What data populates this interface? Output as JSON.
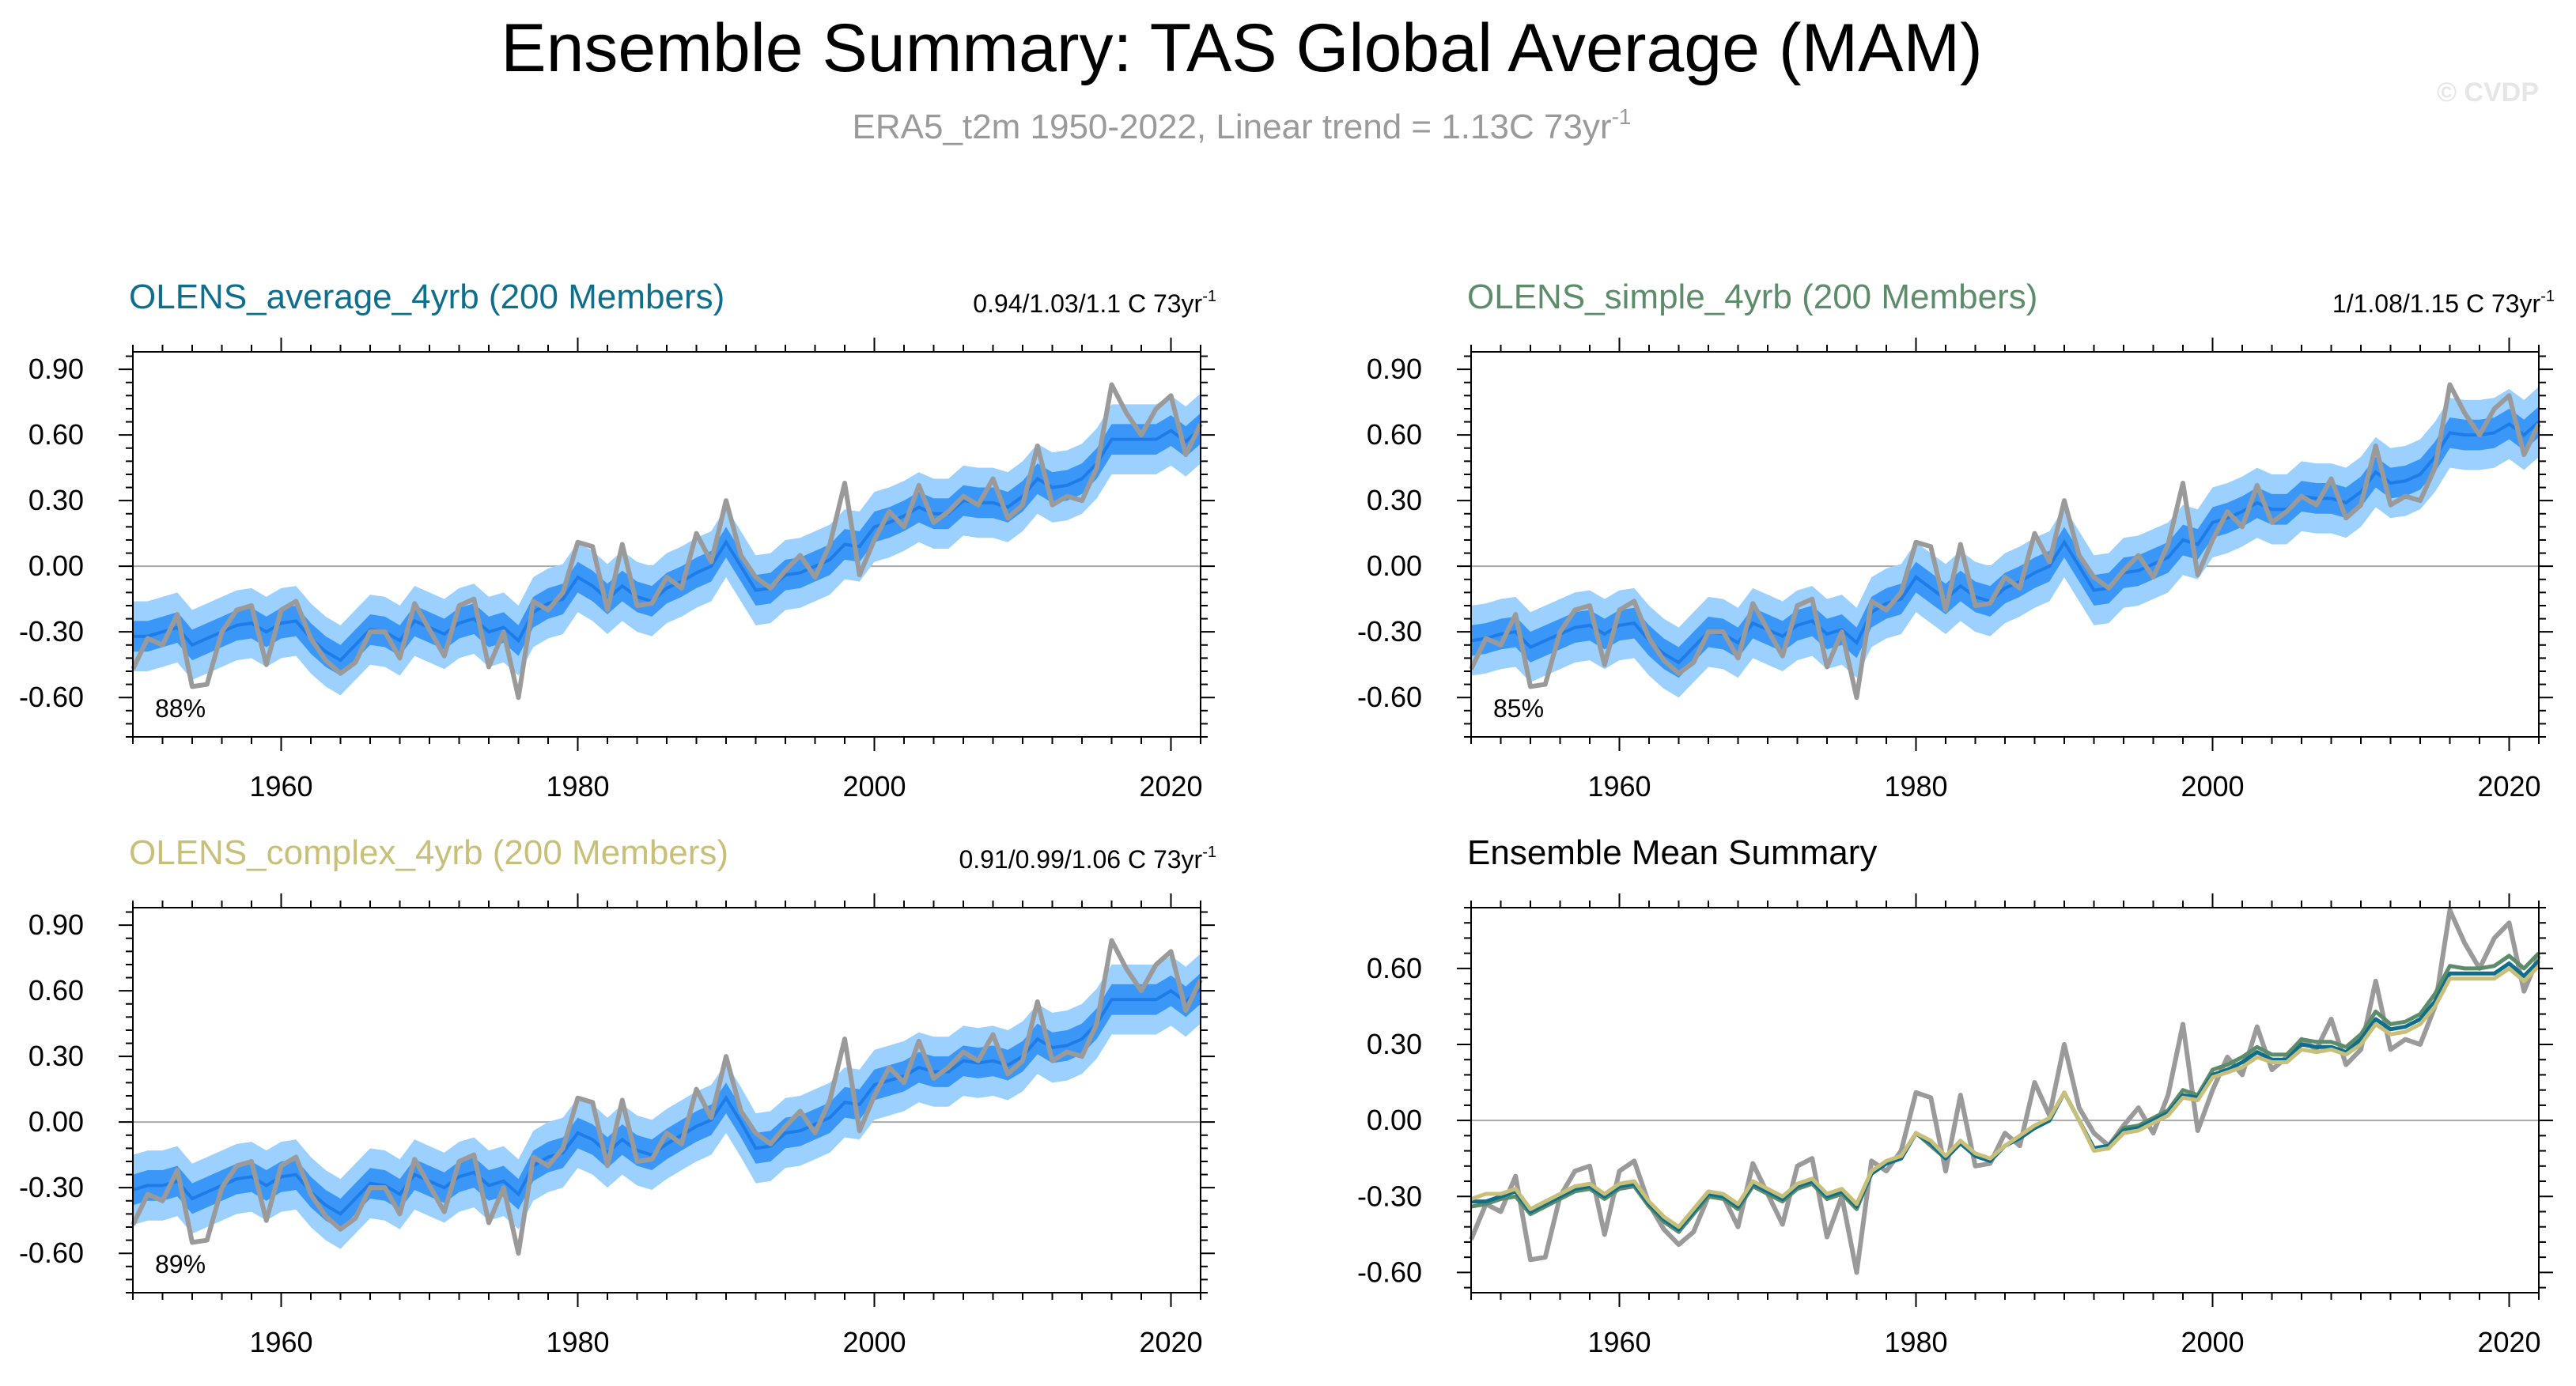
{
  "header": {
    "title": "Ensemble Summary: TAS Global Average (MAM)",
    "subtitle_main": "ERA5_t2m 1950-2022, Linear trend = 1.13C 73yr",
    "subtitle_sup": "-1",
    "watermark": "© CVDP"
  },
  "colors": {
    "obs": "#9a9a9a",
    "band_outer": "#9bd0ff",
    "band_inner": "#3b97f7",
    "mean_line": "#1e7ce8",
    "title_average": "#0f6e8c",
    "title_simple": "#5c8c6a",
    "title_complex": "#c8c07a",
    "zero_line": "#aaaaaa"
  },
  "chart_data": [
    {
      "type": "line",
      "title": "OLENS_average_4yrb (200 Members)",
      "trend_label": "0.94/1.03/1.1 C 73yr",
      "trend_sup": "-1",
      "percent_label": "88%",
      "xlim": [
        1950,
        2022
      ],
      "ylim": [
        -0.78,
        0.98
      ],
      "xticks": [
        "1960",
        "1980",
        "2000",
        "2020"
      ],
      "yticks": [
        "0.90",
        "0.60",
        "0.30",
        "0.00",
        "-0.30",
        "-0.60"
      ],
      "x_start": 1950,
      "observed": [
        -0.47,
        -0.33,
        -0.36,
        -0.22,
        -0.55,
        -0.54,
        -0.3,
        -0.2,
        -0.18,
        -0.45,
        -0.2,
        -0.16,
        -0.33,
        -0.43,
        -0.49,
        -0.44,
        -0.3,
        -0.3,
        -0.42,
        -0.17,
        -0.29,
        -0.41,
        -0.18,
        -0.15,
        -0.46,
        -0.3,
        -0.6,
        -0.16,
        -0.2,
        -0.12,
        0.11,
        0.09,
        -0.2,
        0.1,
        -0.18,
        -0.17,
        -0.05,
        -0.1,
        0.15,
        0.02,
        0.3,
        0.05,
        -0.05,
        -0.1,
        -0.02,
        0.05,
        -0.05,
        0.1,
        0.38,
        -0.04,
        0.12,
        0.25,
        0.18,
        0.37,
        0.2,
        0.25,
        0.32,
        0.28,
        0.4,
        0.22,
        0.28,
        0.55,
        0.28,
        0.32,
        0.3,
        0.45,
        0.83,
        0.7,
        0.6,
        0.72,
        0.78,
        0.51,
        0.65
      ],
      "ensemble_mean": [
        -0.32,
        -0.32,
        -0.3,
        -0.28,
        -0.36,
        -0.33,
        -0.3,
        -0.27,
        -0.26,
        -0.3,
        -0.26,
        -0.25,
        -0.33,
        -0.39,
        -0.43,
        -0.36,
        -0.29,
        -0.3,
        -0.34,
        -0.25,
        -0.28,
        -0.31,
        -0.26,
        -0.24,
        -0.3,
        -0.28,
        -0.34,
        -0.21,
        -0.17,
        -0.15,
        -0.05,
        -0.09,
        -0.15,
        -0.09,
        -0.14,
        -0.16,
        -0.1,
        -0.07,
        -0.03,
        0.0,
        0.11,
        0.0,
        -0.11,
        -0.1,
        -0.04,
        -0.03,
        0.0,
        0.03,
        0.1,
        0.09,
        0.18,
        0.2,
        0.23,
        0.27,
        0.24,
        0.24,
        0.3,
        0.29,
        0.29,
        0.27,
        0.32,
        0.4,
        0.36,
        0.37,
        0.4,
        0.47,
        0.58,
        0.58,
        0.58,
        0.58,
        0.62,
        0.57,
        0.63
      ],
      "spread_inner": 0.07,
      "spread_outer": 0.16
    },
    {
      "type": "line",
      "title": "OLENS_simple_4yrb (200 Members)",
      "trend_label": "1/1.08/1.15 C 73yr",
      "trend_sup": "-1",
      "percent_label": "85%",
      "xlim": [
        1950,
        2022
      ],
      "ylim": [
        -0.78,
        0.98
      ],
      "xticks": [
        "1960",
        "1980",
        "2000",
        "2020"
      ],
      "yticks": [
        "0.90",
        "0.60",
        "0.30",
        "0.00",
        "-0.30",
        "-0.60"
      ],
      "x_start": 1950,
      "observed": [
        -0.47,
        -0.33,
        -0.36,
        -0.22,
        -0.55,
        -0.54,
        -0.3,
        -0.2,
        -0.18,
        -0.45,
        -0.2,
        -0.16,
        -0.33,
        -0.43,
        -0.49,
        -0.44,
        -0.3,
        -0.3,
        -0.42,
        -0.17,
        -0.29,
        -0.41,
        -0.18,
        -0.15,
        -0.46,
        -0.3,
        -0.6,
        -0.16,
        -0.2,
        -0.12,
        0.11,
        0.09,
        -0.2,
        0.1,
        -0.18,
        -0.17,
        -0.05,
        -0.1,
        0.15,
        0.02,
        0.3,
        0.05,
        -0.05,
        -0.1,
        -0.02,
        0.05,
        -0.05,
        0.1,
        0.38,
        -0.04,
        0.12,
        0.25,
        0.18,
        0.37,
        0.2,
        0.25,
        0.32,
        0.28,
        0.4,
        0.22,
        0.28,
        0.55,
        0.28,
        0.32,
        0.3,
        0.45,
        0.83,
        0.7,
        0.6,
        0.72,
        0.78,
        0.51,
        0.65
      ],
      "ensemble_mean": [
        -0.34,
        -0.33,
        -0.31,
        -0.3,
        -0.37,
        -0.34,
        -0.31,
        -0.28,
        -0.27,
        -0.31,
        -0.27,
        -0.26,
        -0.34,
        -0.4,
        -0.44,
        -0.37,
        -0.3,
        -0.31,
        -0.35,
        -0.26,
        -0.29,
        -0.32,
        -0.27,
        -0.25,
        -0.31,
        -0.29,
        -0.35,
        -0.21,
        -0.17,
        -0.15,
        -0.05,
        -0.1,
        -0.15,
        -0.09,
        -0.14,
        -0.16,
        -0.1,
        -0.07,
        -0.03,
        0.0,
        0.11,
        0.0,
        -0.11,
        -0.1,
        -0.03,
        -0.02,
        0.01,
        0.04,
        0.12,
        0.1,
        0.2,
        0.22,
        0.25,
        0.29,
        0.26,
        0.26,
        0.32,
        0.31,
        0.31,
        0.29,
        0.34,
        0.43,
        0.38,
        0.39,
        0.42,
        0.5,
        0.61,
        0.6,
        0.6,
        0.61,
        0.65,
        0.6,
        0.66
      ],
      "spread_inner": 0.07,
      "spread_outer": 0.16
    },
    {
      "type": "line",
      "title": "OLENS_complex_4yrb (200 Members)",
      "trend_label": "0.91/0.99/1.06 C 73yr",
      "trend_sup": "-1",
      "percent_label": "89%",
      "xlim": [
        1950,
        2022
      ],
      "ylim": [
        -0.78,
        0.98
      ],
      "xticks": [
        "1960",
        "1980",
        "2000",
        "2020"
      ],
      "yticks": [
        "0.90",
        "0.60",
        "0.30",
        "0.00",
        "-0.30",
        "-0.60"
      ],
      "x_start": 1950,
      "observed": [
        -0.47,
        -0.33,
        -0.36,
        -0.22,
        -0.55,
        -0.54,
        -0.3,
        -0.2,
        -0.18,
        -0.45,
        -0.2,
        -0.16,
        -0.33,
        -0.43,
        -0.49,
        -0.44,
        -0.3,
        -0.3,
        -0.42,
        -0.17,
        -0.29,
        -0.41,
        -0.18,
        -0.15,
        -0.46,
        -0.3,
        -0.6,
        -0.16,
        -0.2,
        -0.12,
        0.11,
        0.09,
        -0.2,
        0.1,
        -0.18,
        -0.17,
        -0.05,
        -0.1,
        0.15,
        0.02,
        0.3,
        0.05,
        -0.05,
        -0.1,
        -0.02,
        0.05,
        -0.05,
        0.1,
        0.38,
        -0.04,
        0.12,
        0.25,
        0.18,
        0.37,
        0.2,
        0.25,
        0.32,
        0.28,
        0.4,
        0.22,
        0.28,
        0.55,
        0.28,
        0.32,
        0.3,
        0.45,
        0.83,
        0.7,
        0.6,
        0.72,
        0.78,
        0.51,
        0.65
      ],
      "ensemble_mean": [
        -0.31,
        -0.29,
        -0.29,
        -0.27,
        -0.35,
        -0.32,
        -0.29,
        -0.26,
        -0.25,
        -0.29,
        -0.25,
        -0.24,
        -0.32,
        -0.38,
        -0.42,
        -0.35,
        -0.28,
        -0.29,
        -0.33,
        -0.24,
        -0.27,
        -0.3,
        -0.25,
        -0.23,
        -0.29,
        -0.27,
        -0.33,
        -0.2,
        -0.16,
        -0.14,
        -0.05,
        -0.08,
        -0.14,
        -0.08,
        -0.13,
        -0.15,
        -0.1,
        -0.06,
        -0.02,
        0.01,
        0.11,
        0.0,
        -0.12,
        -0.11,
        -0.05,
        -0.04,
        -0.01,
        0.02,
        0.09,
        0.08,
        0.17,
        0.19,
        0.21,
        0.25,
        0.23,
        0.23,
        0.28,
        0.27,
        0.28,
        0.26,
        0.3,
        0.38,
        0.34,
        0.35,
        0.38,
        0.45,
        0.56,
        0.56,
        0.56,
        0.56,
        0.6,
        0.55,
        0.61
      ],
      "spread_inner": 0.07,
      "spread_outer": 0.16
    },
    {
      "type": "line",
      "title": "Ensemble Mean Summary",
      "xlim": [
        1950,
        2022
      ],
      "ylim": [
        -0.68,
        0.84
      ],
      "xticks": [
        "1960",
        "1980",
        "2000",
        "2020"
      ],
      "yticks": [
        "0.60",
        "0.30",
        "0.00",
        "-0.30",
        "-0.60"
      ],
      "x_start": 1950,
      "series": [
        {
          "name": "ERA5_t2m",
          "color": "#9a9a9a"
        },
        {
          "name": "OLENS_average_4yrb",
          "color": "#0f6e8c"
        },
        {
          "name": "OLENS_simple_4yrb",
          "color": "#5c8c6a"
        },
        {
          "name": "OLENS_complex_4yrb",
          "color": "#c8c07a"
        }
      ]
    }
  ]
}
